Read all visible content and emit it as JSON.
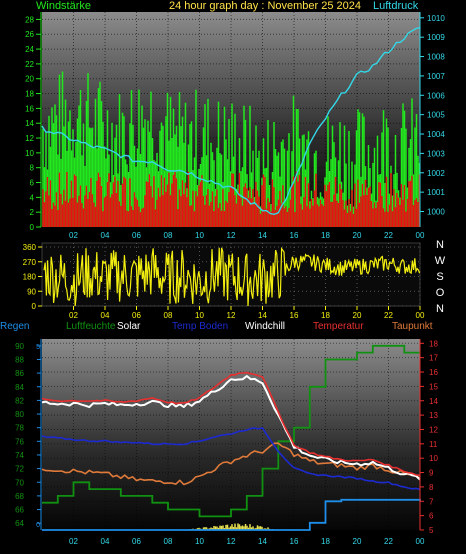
{
  "header": {
    "left_label": "Windstärke",
    "title": "24 hour graph day : November 25 2024",
    "right_label": "Luftdruck"
  },
  "hour_ticks": [
    "02",
    "04",
    "06",
    "08",
    "10",
    "12",
    "14",
    "16",
    "18",
    "20",
    "22",
    "00"
  ],
  "colors": {
    "wind_gust": "#22e81e",
    "wind_avg": "#e81010",
    "pressure": "#33d8e8",
    "direction": "#f2ee10",
    "humidity": "#119111",
    "solar": "#e8e050",
    "soil_temp": "#1c2ad0",
    "windchill": "#ffffff",
    "temperature": "#e83030",
    "dewpoint": "#e07a3a",
    "rain": "#1e8ee8"
  },
  "chart_data": [
    {
      "type": "area",
      "title": "24 hour graph day : November 25 2024",
      "x": [
        0,
        1,
        2,
        3,
        4,
        5,
        6,
        7,
        8,
        9,
        10,
        11,
        12,
        13,
        14,
        15,
        16,
        17,
        18,
        19,
        20,
        21,
        22,
        23,
        24
      ],
      "y_left": {
        "label": "Windstärke",
        "ticks": [
          0,
          2,
          4,
          6,
          8,
          10,
          12,
          14,
          16,
          18,
          20,
          22,
          24,
          26,
          28
        ],
        "ylim": [
          0,
          29
        ]
      },
      "y_right": {
        "label": "Luftdruck",
        "ticks": [
          1000,
          1001,
          1002,
          1003,
          1004,
          1005,
          1006,
          1007,
          1008,
          1009,
          1010
        ],
        "ylim": [
          999.2,
          1010.3
        ]
      },
      "x_ticks": [
        "02",
        "04",
        "06",
        "08",
        "10",
        "12",
        "14",
        "16",
        "18",
        "20",
        "22",
        "00"
      ],
      "series": [
        {
          "name": "Windstärke",
          "axis": "left",
          "values": [
            14,
            15,
            16,
            15,
            14,
            13,
            15,
            16,
            13,
            12,
            13,
            12,
            12,
            11,
            9,
            11,
            12,
            11,
            10,
            11,
            10,
            11,
            12,
            11,
            12
          ]
        },
        {
          "name": "Luftdruck",
          "axis": "right",
          "values": [
            1004.3,
            1004.0,
            1003.7,
            1003.4,
            1003.2,
            1002.9,
            1002.6,
            1002.6,
            1002.2,
            1002.1,
            1001.8,
            1001.5,
            1001.2,
            1000.6,
            1000.1,
            999.9,
            1001.5,
            1003.5,
            1004.8,
            1006.0,
            1007.0,
            1007.5,
            1008.3,
            1009.0,
            1009.5
          ]
        }
      ]
    },
    {
      "type": "scatter",
      "title": "",
      "x": [
        0,
        1,
        2,
        3,
        4,
        5,
        6,
        7,
        8,
        9,
        10,
        11,
        12,
        13,
        14,
        15,
        16,
        17,
        18,
        19,
        20,
        21,
        22,
        23,
        24
      ],
      "y_left": {
        "ticks": [
          0,
          90,
          180,
          270,
          360
        ],
        "ylim": [
          0,
          360
        ]
      },
      "right_labels": [
        "N",
        "W",
        "S",
        "O",
        "N"
      ],
      "x_ticks": [
        "02",
        "04",
        "06",
        "08",
        "10",
        "12",
        "14",
        "16",
        "18",
        "20",
        "22",
        "00"
      ],
      "series": [
        {
          "name": "",
          "values": [
            210,
            180,
            160,
            200,
            170,
            190,
            180,
            210,
            170,
            190,
            150,
            200,
            180,
            160,
            170,
            190,
            270,
            270,
            250,
            230,
            240,
            250,
            260,
            240,
            250
          ]
        }
      ]
    },
    {
      "type": "line",
      "title": "",
      "x": [
        0,
        1,
        2,
        3,
        4,
        5,
        6,
        7,
        8,
        9,
        10,
        11,
        12,
        13,
        14,
        15,
        16,
        17,
        18,
        19,
        20,
        21,
        22,
        23,
        24
      ],
      "legend": [
        "Regen",
        "Luftfeuchte",
        "Solar",
        "Temp Boden",
        "Windchill",
        "Temperatur",
        "Taupunkt"
      ],
      "y_left": {
        "ticks": [
          64,
          66,
          68,
          70,
          72,
          74,
          76,
          78,
          80,
          82,
          84,
          86,
          88,
          90
        ],
        "ylim": [
          63,
          91
        ]
      },
      "y_right": {
        "ticks": [
          5,
          6,
          7,
          8,
          9,
          10,
          11,
          12,
          13,
          14,
          15,
          16,
          17,
          18
        ],
        "ylim": [
          5,
          18.3
        ]
      },
      "x_ticks": [
        "02",
        "04",
        "06",
        "08",
        "10",
        "12",
        "14",
        "16",
        "18",
        "20",
        "22",
        "00"
      ],
      "series": [
        {
          "name": "Regen",
          "axis": "right",
          "values": [
            5,
            5,
            5,
            5,
            5,
            5,
            5,
            5,
            5,
            5,
            5,
            5,
            5,
            5,
            5,
            5,
            5,
            5.5,
            7.0,
            7.1,
            7.1,
            7.1,
            7.1,
            7.1,
            7.0
          ]
        },
        {
          "name": "Luftfeuchte",
          "axis": "left",
          "values": [
            67,
            68,
            70,
            69,
            69,
            68,
            68,
            67,
            66,
            66,
            65,
            65,
            66,
            68,
            72,
            76,
            78,
            84,
            88,
            88,
            89,
            90,
            90,
            89,
            89
          ]
        },
        {
          "name": "Solar",
          "axis": "right",
          "values": [
            5,
            5,
            5,
            5,
            5,
            5,
            5,
            5,
            5,
            5,
            5.1,
            5.2,
            5.3,
            5.3,
            5.2,
            5,
            5,
            5,
            5,
            5,
            5,
            5,
            5,
            5,
            5
          ]
        },
        {
          "name": "Temp Boden",
          "axis": "right",
          "values": [
            11.5,
            11.4,
            11.3,
            11.2,
            11.2,
            11.1,
            11.1,
            11.0,
            11.0,
            11.0,
            11.2,
            11.5,
            11.7,
            12.0,
            12.1,
            10.5,
            9.3,
            8.9,
            8.8,
            8.7,
            8.6,
            8.4,
            8.3,
            8.0,
            7.8
          ]
        },
        {
          "name": "Windchill",
          "axis": "right",
          "values": [
            13.9,
            13.8,
            13.8,
            13.7,
            13.8,
            13.7,
            13.8,
            13.9,
            13.7,
            13.6,
            14.0,
            14.7,
            15.5,
            15.6,
            15.3,
            13.0,
            10.8,
            10.2,
            9.9,
            9.7,
            9.6,
            9.7,
            9.3,
            8.9,
            8.6
          ]
        },
        {
          "name": "Temperatur",
          "axis": "right",
          "values": [
            14.1,
            14.0,
            14.0,
            14.0,
            14.0,
            13.9,
            14.0,
            14.2,
            13.9,
            13.8,
            14.2,
            15.0,
            15.8,
            16.0,
            15.7,
            13.2,
            10.9,
            10.4,
            10.1,
            9.9,
            9.8,
            9.9,
            9.5,
            9.1,
            8.8
          ]
        },
        {
          "name": "Taupunkt",
          "axis": "right",
          "values": [
            9.3,
            9.2,
            9.1,
            9.0,
            8.9,
            8.7,
            8.5,
            8.4,
            8.4,
            8.3,
            8.7,
            9.3,
            9.8,
            10.2,
            10.5,
            11.0,
            10.3,
            9.8,
            9.6,
            9.5,
            9.3,
            9.5,
            9.2,
            8.9,
            8.6
          ]
        }
      ]
    }
  ]
}
